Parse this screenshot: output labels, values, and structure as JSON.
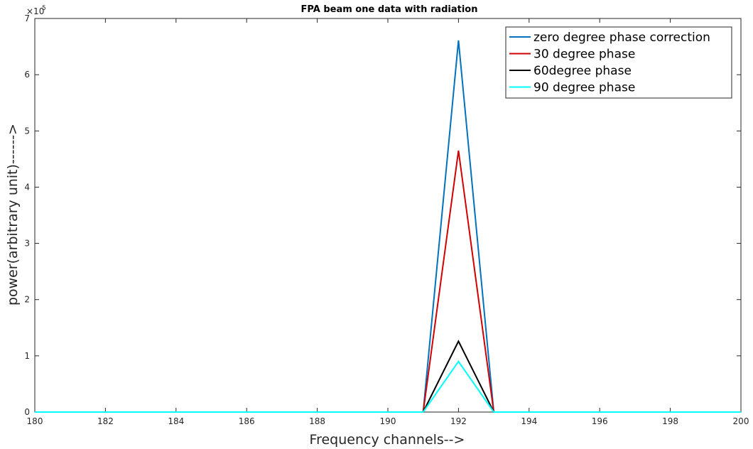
{
  "chart_data": {
    "type": "line",
    "title": "FPA beam one data with radiation",
    "xlabel": "Frequency channels-->",
    "ylabel": "power(arbitrary unit)------>",
    "xlim": [
      180,
      200
    ],
    "ylim": [
      0,
      700000
    ],
    "y_exponent_label": "×10",
    "y_exponent_power": "5",
    "x_ticks": [
      180,
      182,
      184,
      186,
      188,
      190,
      192,
      194,
      196,
      198,
      200
    ],
    "y_ticks": [
      0,
      1,
      2,
      3,
      4,
      5,
      6,
      7
    ],
    "legend_position": "top-right",
    "x": [
      180,
      191,
      192,
      193,
      200
    ],
    "series": [
      {
        "name": "zero degree phase correction",
        "color": "#0072bd",
        "values": [
          0,
          0,
          661000,
          0,
          0
        ]
      },
      {
        "name": "30 degree phase",
        "color": "#d00000",
        "values": [
          0,
          0,
          465000,
          0,
          0
        ]
      },
      {
        "name": "60degree phase",
        "color": "#000000",
        "values": [
          0,
          0,
          126000,
          0,
          0
        ]
      },
      {
        "name": "90 degree phase",
        "color": "#00ffff",
        "values": [
          0,
          0,
          90000,
          0,
          0
        ]
      }
    ]
  }
}
